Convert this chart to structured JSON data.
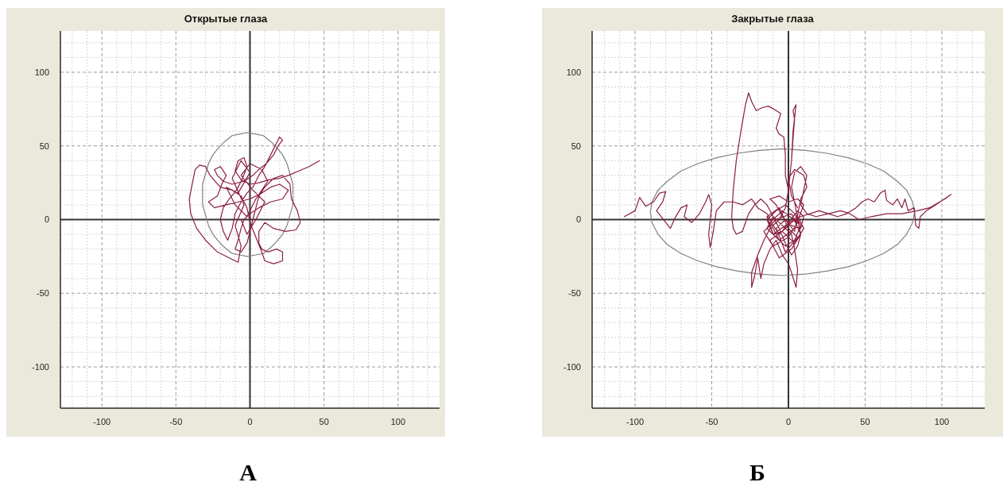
{
  "chart_data": [
    {
      "type": "line",
      "title": "Открытые глаза",
      "annotations": [
        "А"
      ],
      "xlim": [
        -128,
        128
      ],
      "ylim": [
        -128,
        128
      ],
      "xticks": [
        {
          "value": -120,
          "label": null
        },
        {
          "value": -110,
          "label": null
        },
        -100,
        {
          "value": -90,
          "label": null
        },
        {
          "value": -80,
          "label": null
        },
        {
          "value": -70,
          "label": null
        },
        {
          "value": -60,
          "label": null
        },
        -50,
        {
          "value": -40,
          "label": null
        },
        {
          "value": -30,
          "label": null
        },
        {
          "value": -20,
          "label": null
        },
        {
          "value": -10,
          "label": null
        },
        0,
        {
          "value": 10,
          "label": null
        },
        {
          "value": 20,
          "label": null
        },
        {
          "value": 30,
          "label": null
        },
        {
          "value": 40,
          "label": null
        },
        50,
        {
          "value": 60,
          "label": null
        },
        {
          "value": 70,
          "label": null
        },
        {
          "value": 80,
          "label": null
        },
        {
          "value": 90,
          "label": null
        },
        100,
        {
          "value": 110,
          "label": null
        },
        {
          "value": 120,
          "label": null
        }
      ],
      "yticks": [
        {
          "value": -120,
          "label": null
        },
        {
          "value": -110,
          "label": null
        },
        -100,
        {
          "value": -90,
          "label": null
        },
        {
          "value": -80,
          "label": null
        },
        {
          "value": -70,
          "label": null
        },
        {
          "value": -60,
          "label": null
        },
        -50,
        {
          "value": -40,
          "label": null
        },
        {
          "value": -30,
          "label": null
        },
        {
          "value": -20,
          "label": null
        },
        {
          "value": -10,
          "label": null
        },
        0,
        {
          "value": 10,
          "label": null
        },
        {
          "value": 20,
          "label": null
        },
        {
          "value": 30,
          "label": null
        },
        {
          "value": 40,
          "label": null
        },
        50,
        {
          "value": 60,
          "label": null
        },
        {
          "value": 70,
          "label": null
        },
        {
          "value": 80,
          "label": null
        },
        {
          "value": 90,
          "label": null
        },
        100,
        {
          "value": 110,
          "label": null
        },
        {
          "value": 120,
          "label": null
        }
      ],
      "grid": true,
      "marker": "none",
      "series": [
        {
          "color": "#808080",
          "x": [
            29,
            29,
            27,
            25,
            22,
            18,
            14,
            9,
            4,
            -2,
            -7,
            -12,
            -17,
            -21,
            -25,
            -28,
            -30,
            -32,
            -32,
            -32,
            -30,
            -28,
            -25,
            -21,
            -17,
            -12,
            -7,
            -2,
            4,
            9,
            14,
            18,
            22,
            25,
            27,
            29,
            29
          ],
          "values": [
            17,
            24,
            31,
            38,
            44,
            49,
            53,
            57,
            58,
            59,
            58,
            57,
            53,
            49,
            44,
            38,
            31,
            24,
            17,
            10,
            3,
            -4,
            -10,
            -15,
            -19,
            -23,
            -24,
            -25,
            -24,
            -23,
            -19,
            -15,
            -10,
            -4,
            3,
            10,
            16
          ]
        },
        {
          "color": "#8b1e3f",
          "x": [
            47,
            40,
            33,
            26,
            20,
            13,
            6,
            0,
            -6,
            -10,
            -8,
            -4,
            -2,
            -5,
            -9,
            -14,
            -18,
            -20,
            -18,
            -15,
            -12,
            -10,
            -6,
            -2,
            2,
            6,
            10,
            14,
            18,
            20,
            22,
            19,
            16,
            11,
            6,
            2,
            -4,
            -12,
            -18,
            -22,
            -24,
            -20,
            -16,
            -19,
            -22,
            -28,
            -24,
            -16,
            -8,
            0,
            8,
            14,
            20,
            26,
            22,
            14,
            6,
            0,
            -4,
            -6,
            -8,
            -10,
            -6,
            -2,
            0,
            2,
            4,
            6,
            10,
            16,
            22,
            27,
            28,
            32,
            34,
            31,
            24,
            16,
            10,
            6,
            6,
            8,
            12,
            18,
            22,
            22,
            16,
            10,
            8,
            4,
            0,
            -2,
            -6,
            -12,
            -20,
            -27,
            -30,
            -34,
            -37,
            -39,
            -41,
            -40,
            -36,
            -30,
            -22,
            -14,
            -8,
            -6,
            -10,
            -4,
            -12,
            -6,
            0,
            -8,
            -16,
            -10,
            -2,
            4,
            12,
            8,
            0,
            -6,
            2,
            10,
            4,
            -2,
            -6
          ],
          "values": [
            40,
            36,
            33,
            30,
            28,
            27,
            25,
            24,
            27,
            33,
            40,
            42,
            36,
            28,
            20,
            14,
            8,
            0,
            -8,
            -14,
            -6,
            4,
            12,
            18,
            22,
            30,
            36,
            44,
            52,
            56,
            54,
            50,
            44,
            38,
            34,
            30,
            26,
            24,
            26,
            30,
            34,
            36,
            30,
            24,
            16,
            12,
            8,
            10,
            12,
            14,
            18,
            22,
            24,
            20,
            14,
            12,
            8,
            4,
            0,
            -6,
            -14,
            -20,
            -22,
            -16,
            -8,
            0,
            8,
            16,
            22,
            28,
            30,
            24,
            14,
            6,
            -2,
            -7,
            -8,
            -6,
            -2,
            -8,
            -16,
            -20,
            -22,
            -20,
            -22,
            -28,
            -30,
            -28,
            -22,
            -12,
            -2,
            8,
            16,
            20,
            22,
            30,
            36,
            37,
            34,
            24,
            14,
            4,
            -6,
            -14,
            -22,
            -26,
            -29,
            -18,
            -4,
            10,
            28,
            40,
            32,
            18,
            22,
            10,
            2,
            14,
            26,
            34,
            38,
            30,
            20,
            12,
            0,
            -10,
            0
          ]
        }
      ]
    },
    {
      "type": "line",
      "title": "Закрытые глаза",
      "annotations": [
        "Б"
      ],
      "xlim": [
        -128,
        128
      ],
      "ylim": [
        -128,
        128
      ],
      "xticks": [
        {
          "value": -120,
          "label": null
        },
        {
          "value": -110,
          "label": null
        },
        -100,
        {
          "value": -90,
          "label": null
        },
        {
          "value": -80,
          "label": null
        },
        {
          "value": -70,
          "label": null
        },
        {
          "value": -60,
          "label": null
        },
        -50,
        {
          "value": -40,
          "label": null
        },
        {
          "value": -30,
          "label": null
        },
        {
          "value": -20,
          "label": null
        },
        {
          "value": -10,
          "label": null
        },
        0,
        {
          "value": 10,
          "label": null
        },
        {
          "value": 20,
          "label": null
        },
        {
          "value": 30,
          "label": null
        },
        {
          "value": 40,
          "label": null
        },
        50,
        {
          "value": 60,
          "label": null
        },
        {
          "value": 70,
          "label": null
        },
        {
          "value": 80,
          "label": null
        },
        {
          "value": 90,
          "label": null
        },
        100,
        {
          "value": 110,
          "label": null
        },
        {
          "value": 120,
          "label": null
        }
      ],
      "yticks": [
        {
          "value": -120,
          "label": null
        },
        {
          "value": -110,
          "label": null
        },
        -100,
        {
          "value": -90,
          "label": null
        },
        {
          "value": -80,
          "label": null
        },
        {
          "value": -70,
          "label": null
        },
        {
          "value": -60,
          "label": null
        },
        -50,
        {
          "value": -40,
          "label": null
        },
        {
          "value": -30,
          "label": null
        },
        {
          "value": -20,
          "label": null
        },
        {
          "value": -10,
          "label": null
        },
        0,
        {
          "value": 10,
          "label": null
        },
        {
          "value": 20,
          "label": null
        },
        {
          "value": 30,
          "label": null
        },
        {
          "value": 40,
          "label": null
        },
        50,
        {
          "value": 60,
          "label": null
        },
        {
          "value": 70,
          "label": null
        },
        {
          "value": 80,
          "label": null
        },
        {
          "value": 90,
          "label": null
        },
        100,
        {
          "value": 110,
          "label": null
        },
        {
          "value": 120,
          "label": null
        }
      ],
      "grid": true,
      "marker": "none",
      "series": [
        {
          "color": "#808080",
          "x": [
            82,
            81,
            77,
            71,
            62,
            51,
            39,
            25,
            11,
            -4,
            -19,
            -33,
            -47,
            -59,
            -70,
            -79,
            -85,
            -89,
            -90,
            -89,
            -85,
            -79,
            -70,
            -59,
            -47,
            -33,
            -19,
            -4,
            11,
            25,
            39,
            51,
            62,
            71,
            77,
            81,
            82
          ],
          "values": [
            5,
            12,
            20,
            26,
            33,
            38,
            42,
            45,
            47,
            48,
            47,
            45,
            42,
            38,
            33,
            26,
            20,
            12,
            5,
            -2,
            -10,
            -17,
            -23,
            -28,
            -32,
            -35,
            -37,
            -38,
            -37,
            -35,
            -32,
            -28,
            -23,
            -17,
            -10,
            -2,
            4
          ]
        },
        {
          "color": "#8b1e3f",
          "x": [
            -107,
            -100,
            -97,
            -93,
            -88,
            -84,
            -80,
            -82,
            -86,
            -80,
            -77,
            -74,
            -70,
            -66,
            -68,
            -63,
            -58,
            -54,
            -52,
            -50,
            -51,
            -52,
            -51,
            -49,
            -47,
            -42,
            -36,
            -30,
            -24,
            -20,
            -14,
            -10,
            -6,
            -2,
            2,
            8,
            14,
            20,
            26,
            32,
            38,
            44,
            48,
            52,
            56,
            60,
            63,
            64,
            68,
            71,
            74,
            76,
            78,
            82,
            83,
            85,
            86,
            90,
            96,
            106,
            102,
            92,
            84,
            74,
            64,
            54,
            46,
            40,
            34,
            26,
            18,
            12,
            8,
            10,
            12,
            8,
            4,
            2,
            4,
            6,
            8,
            6,
            2,
            -2,
            -6,
            -10,
            -14,
            -18,
            -22,
            -26,
            -28,
            -30,
            -34,
            -36,
            -37,
            -36,
            -34,
            -31,
            -28,
            -26,
            -24,
            -21,
            -17,
            -13,
            -8,
            -5,
            -8,
            -6,
            -3,
            -2,
            -2,
            0,
            2,
            3,
            4,
            3,
            5,
            3,
            2,
            0,
            -2,
            -6,
            -12,
            -16,
            -20,
            -24,
            -24,
            -22,
            -20,
            -18,
            -16,
            -12,
            -8,
            -4,
            0,
            2,
            5,
            6,
            4,
            2,
            -4,
            -10,
            -14,
            -8,
            -2,
            4,
            8,
            4,
            -2,
            -8,
            -14,
            -10,
            -4,
            0,
            6,
            10,
            8,
            2,
            -4,
            -8,
            -12,
            -6,
            0,
            6,
            10,
            4,
            -6,
            -12,
            -4,
            6,
            0,
            -10,
            -16,
            -8,
            2,
            8,
            2,
            -6,
            -12,
            -4,
            4,
            10,
            6,
            -2,
            -10,
            -14,
            -6,
            0,
            6,
            -2,
            -8,
            -2,
            4,
            8,
            12,
            10,
            4,
            0,
            2,
            6
          ],
          "values": [
            2,
            6,
            15,
            9,
            12,
            18,
            19,
            12,
            6,
            -2,
            -6,
            1,
            8,
            10,
            2,
            -2,
            4,
            12,
            17,
            10,
            0,
            -10,
            -19,
            -8,
            6,
            12,
            12,
            10,
            14,
            8,
            4,
            -4,
            -10,
            -6,
            -2,
            2,
            4,
            6,
            4,
            2,
            4,
            8,
            12,
            14,
            12,
            18,
            20,
            13,
            10,
            14,
            8,
            14,
            6,
            8,
            -4,
            -6,
            2,
            6,
            10,
            17,
            14,
            8,
            6,
            4,
            4,
            2,
            0,
            4,
            6,
            4,
            2,
            4,
            10,
            20,
            30,
            36,
            32,
            22,
            12,
            0,
            -10,
            -18,
            -24,
            -16,
            -6,
            2,
            10,
            14,
            10,
            4,
            -2,
            -8,
            -10,
            -6,
            2,
            20,
            40,
            60,
            78,
            86,
            80,
            74,
            76,
            77,
            74,
            72,
            62,
            58,
            56,
            44,
            30,
            20,
            40,
            55,
            68,
            74,
            78,
            60,
            40,
            20,
            8,
            0,
            -6,
            -14,
            -24,
            -36,
            -46,
            -38,
            -26,
            -40,
            -30,
            -20,
            -14,
            -24,
            -30,
            -36,
            -46,
            -34,
            -20,
            -10,
            -4,
            2,
            -6,
            -12,
            -18,
            -14,
            -4,
            4,
            10,
            6,
            0,
            -10,
            -8,
            -2,
            6,
            2,
            -6,
            -4,
            2,
            10,
            14,
            16,
            12,
            14,
            10,
            -6,
            -14,
            -2,
            6,
            -2,
            -12,
            -18,
            -8,
            0,
            4,
            -10,
            -20,
            -26,
            -14,
            -8,
            -16,
            -6,
            2,
            -4,
            -10,
            2,
            8,
            -6,
            -12,
            -22,
            -6,
            0,
            -8,
            14,
            22,
            30,
            34,
            28,
            16,
            8
          ]
        }
      ]
    }
  ]
}
